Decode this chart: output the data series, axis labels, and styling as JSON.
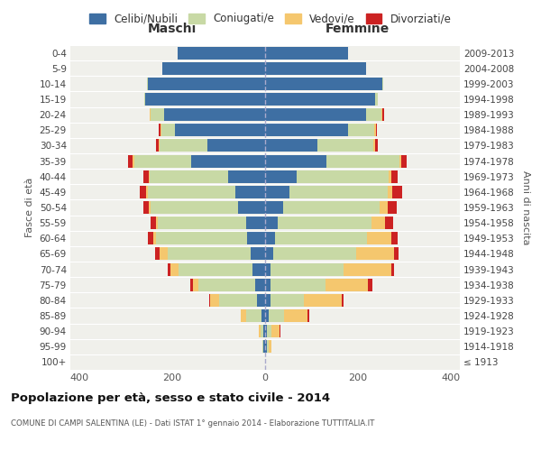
{
  "age_groups": [
    "100+",
    "95-99",
    "90-94",
    "85-89",
    "80-84",
    "75-79",
    "70-74",
    "65-69",
    "60-64",
    "55-59",
    "50-54",
    "45-49",
    "40-44",
    "35-39",
    "30-34",
    "25-29",
    "20-24",
    "15-19",
    "10-14",
    "5-9",
    "0-4"
  ],
  "birth_years": [
    "≤ 1913",
    "1914-1918",
    "1919-1923",
    "1924-1928",
    "1929-1933",
    "1934-1938",
    "1939-1943",
    "1944-1948",
    "1949-1953",
    "1954-1958",
    "1959-1963",
    "1964-1968",
    "1969-1973",
    "1974-1978",
    "1979-1983",
    "1984-1988",
    "1989-1993",
    "1994-1998",
    "1999-2003",
    "2004-2008",
    "2009-2013"
  ],
  "maschi": {
    "celibi": [
      0,
      3,
      3,
      8,
      18,
      22,
      28,
      32,
      38,
      40,
      58,
      65,
      80,
      160,
      125,
      195,
      218,
      258,
      252,
      222,
      188
    ],
    "coniugati": [
      0,
      3,
      6,
      32,
      82,
      122,
      158,
      178,
      198,
      192,
      188,
      188,
      168,
      122,
      102,
      28,
      28,
      3,
      3,
      0,
      0
    ],
    "vedovi": [
      0,
      0,
      4,
      12,
      18,
      12,
      18,
      18,
      6,
      4,
      4,
      3,
      3,
      3,
      3,
      3,
      3,
      0,
      0,
      0,
      0
    ],
    "divorziati": [
      0,
      0,
      0,
      0,
      3,
      6,
      6,
      10,
      10,
      10,
      12,
      14,
      12,
      10,
      6,
      3,
      0,
      0,
      0,
      0,
      0
    ]
  },
  "femmine": {
    "nubili": [
      0,
      3,
      3,
      8,
      12,
      12,
      12,
      18,
      22,
      28,
      38,
      52,
      68,
      132,
      112,
      178,
      218,
      238,
      252,
      218,
      178
    ],
    "coniugate": [
      0,
      4,
      10,
      32,
      72,
      118,
      158,
      178,
      198,
      202,
      208,
      212,
      198,
      158,
      122,
      58,
      32,
      6,
      3,
      0,
      0
    ],
    "vedove": [
      0,
      6,
      18,
      52,
      82,
      92,
      102,
      82,
      52,
      28,
      18,
      10,
      6,
      4,
      4,
      3,
      3,
      0,
      0,
      0,
      0
    ],
    "divorziate": [
      0,
      0,
      3,
      3,
      3,
      10,
      6,
      10,
      14,
      18,
      20,
      22,
      14,
      12,
      6,
      3,
      3,
      0,
      0,
      0,
      0
    ]
  },
  "color_celibi": "#3e6fa3",
  "color_coniugati": "#c8d9a5",
  "color_vedovi": "#f5c76e",
  "color_divorziati": "#cc2222",
  "title": "Popolazione per età, sesso e stato civile - 2014",
  "subtitle": "COMUNE DI CAMPI SALENTINA (LE) - Dati ISTAT 1° gennaio 2014 - Elaborazione TUTTITALIA.IT",
  "xlabel_maschi": "Maschi",
  "xlabel_femmine": "Femmine",
  "ylabel_left": "Fasce di età",
  "ylabel_right": "Anni di nascita",
  "legend_celibi": "Celibi/Nubili",
  "legend_coniugati": "Coniugati/e",
  "legend_vedovi": "Vedovi/e",
  "legend_divorziati": "Divorziati/e",
  "xlim": 420,
  "background_color": "#ffffff",
  "plot_bg": "#f0f0eb"
}
